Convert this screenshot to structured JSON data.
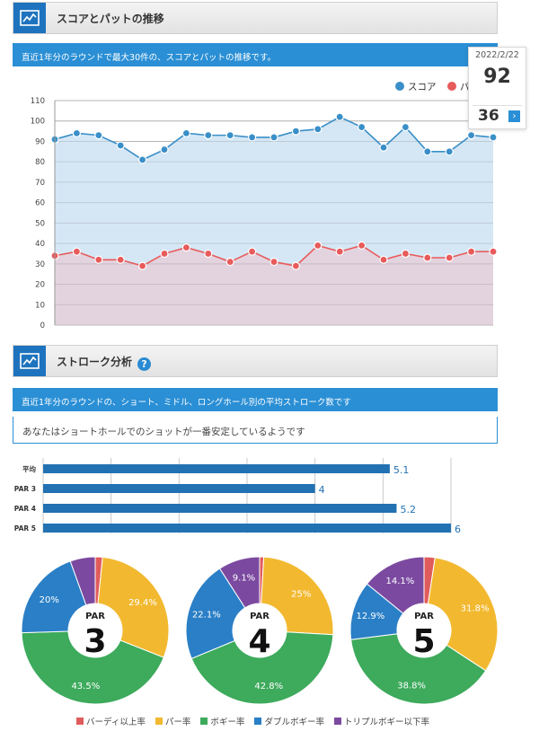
{
  "section1": {
    "title": "スコアとパットの推移",
    "info": "直近1年分のラウンドで最大30件の、スコアとパットの推移です。"
  },
  "tooltip": {
    "date": "2022/2/22",
    "score": "92",
    "putt": "36"
  },
  "section2": {
    "title": "ストローク分析",
    "help": "?",
    "info": "直近1年分のラウンドの、ショート、ミドル、ロングホール別の平均ストローク数です",
    "message": "あなたはショートホールでのショットが一番安定しているようです"
  },
  "colors": {
    "score": "#3a8fc8",
    "putt": "#e85b5b",
    "birdie": "#e05c5c",
    "par": "#f2b930",
    "bogey": "#3daa5c",
    "double": "#2a7fc6",
    "triple": "#7b4aa0",
    "bar": "#2271b3"
  },
  "chart_data": [
    {
      "type": "line",
      "legend": [
        "スコア",
        "パ"
      ],
      "ylim": [
        0,
        110
      ],
      "yticks": [
        0,
        10,
        20,
        30,
        40,
        50,
        60,
        70,
        80,
        90,
        100,
        110
      ],
      "series": [
        {
          "name": "スコア",
          "values": [
            91,
            94,
            93,
            88,
            81,
            86,
            94,
            93,
            93,
            92,
            92,
            95,
            96,
            102,
            97,
            87,
            97,
            85,
            85,
            93,
            92
          ]
        },
        {
          "name": "パ",
          "values": [
            34,
            36,
            32,
            32,
            29,
            35,
            38,
            35,
            31,
            36,
            31,
            29,
            39,
            36,
            39,
            32,
            35,
            33,
            33,
            36,
            36
          ]
        }
      ]
    },
    {
      "type": "bar",
      "categories": [
        "平均",
        "PAR 3",
        "PAR 4",
        "PAR 5"
      ],
      "values": [
        5.1,
        4,
        5.2,
        6
      ],
      "labels": [
        "5.1",
        "4",
        "5.2",
        "6"
      ],
      "xlim": [
        0,
        6
      ]
    },
    {
      "type": "pie",
      "panels": [
        {
          "par": "PAR",
          "num": "3",
          "slices": [
            1.6,
            29.4,
            43.5,
            20.0,
            5.5
          ],
          "labels": [
            "",
            "29.4%",
            "43.5%",
            "20%",
            ""
          ]
        },
        {
          "par": "PAR",
          "num": "4",
          "slices": [
            0.9,
            25.0,
            42.8,
            22.1,
            9.1
          ],
          "labels": [
            "",
            "25%",
            "42.8%",
            "22.1%",
            "9.1%"
          ]
        },
        {
          "par": "PAR",
          "num": "5",
          "slices": [
            2.4,
            31.8,
            38.8,
            12.9,
            14.1
          ],
          "labels": [
            "",
            "31.8%",
            "38.8%",
            "12.9%",
            "14.1%"
          ]
        }
      ],
      "legend": [
        "バーディ以上率",
        "パー率",
        "ボギー率",
        "ダブルボギー率",
        "トリプルボギー以下率"
      ]
    }
  ]
}
